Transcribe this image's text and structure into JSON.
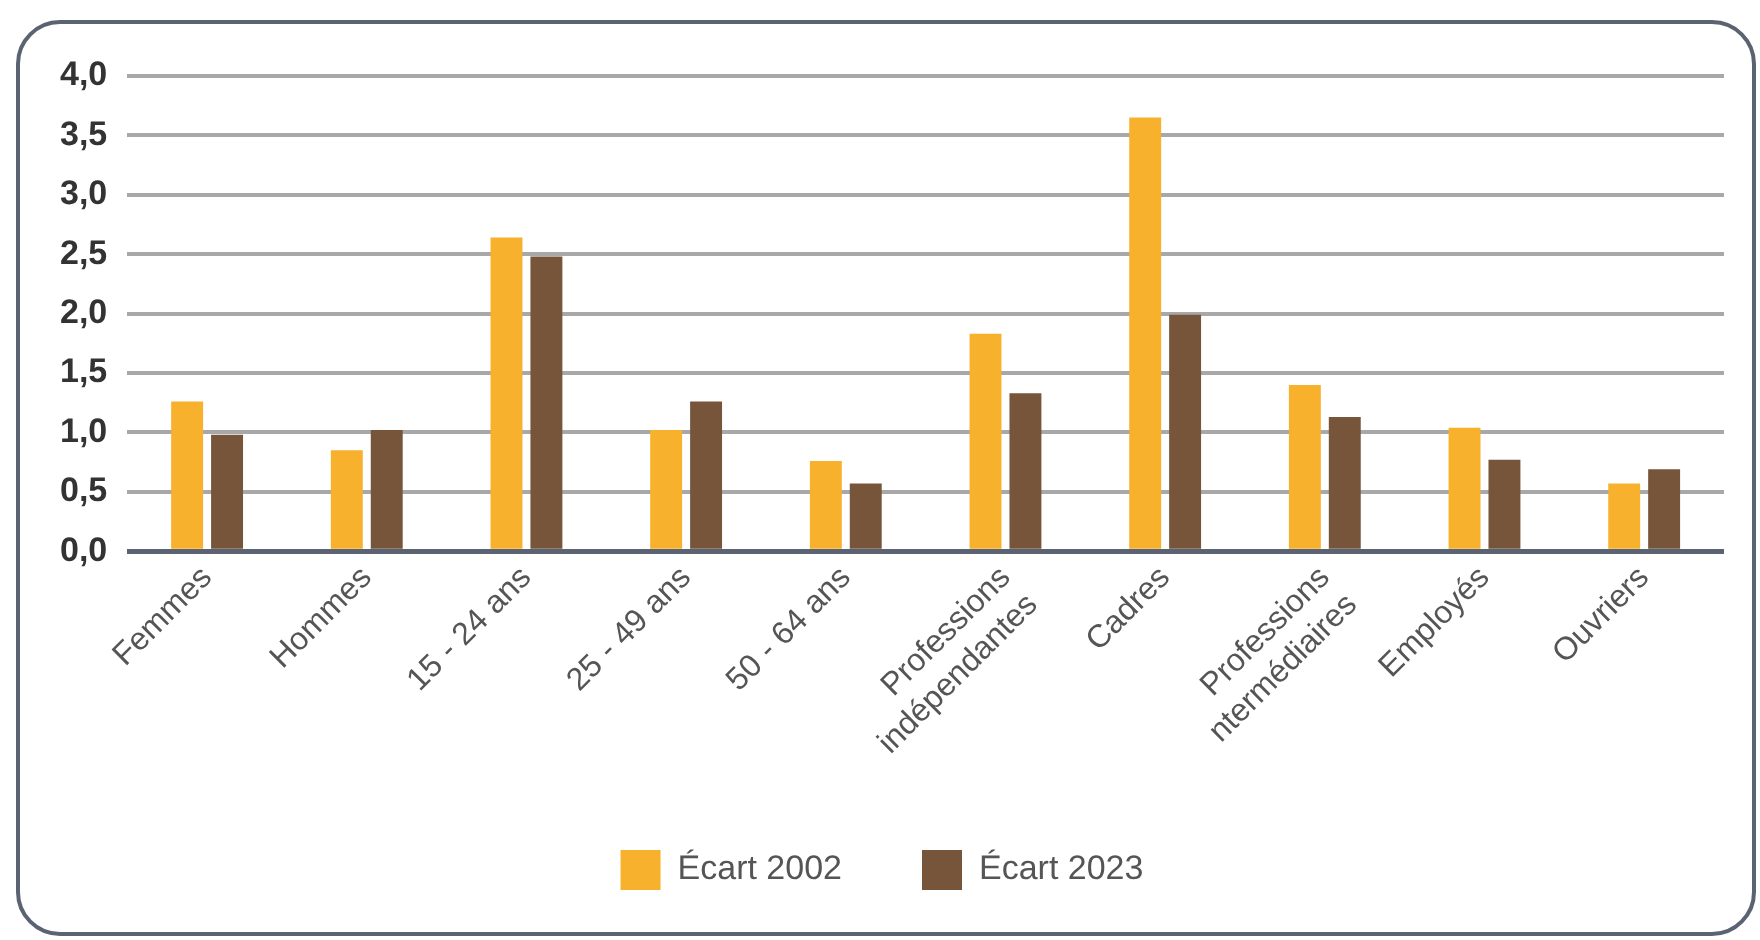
{
  "chart_data": {
    "type": "bar",
    "categories": [
      "Femmes",
      "Hommes",
      "15 - 24 ans",
      "25 - 49 ans",
      "50 - 64 ans",
      "Professions\nindépendantes",
      "Cadres",
      "Professions\nntermédiaires",
      "Employés",
      "Ouvriers"
    ],
    "series": [
      {
        "name": "Écart 2002",
        "color": "#f8b12c",
        "values": [
          1.26,
          0.85,
          2.64,
          1.02,
          0.76,
          1.83,
          3.65,
          1.4,
          1.04,
          0.57
        ]
      },
      {
        "name": "Écart 2023",
        "color": "#77553a",
        "values": [
          0.98,
          1.02,
          2.48,
          1.26,
          0.57,
          1.33,
          1.99,
          1.13,
          0.77,
          0.69
        ]
      }
    ],
    "ylim": [
      0,
      4
    ],
    "yticks": [
      {
        "value": 0,
        "label": "0,0"
      },
      {
        "value": 0.5,
        "label": "0,5"
      },
      {
        "value": 1,
        "label": "1,0"
      },
      {
        "value": 1.5,
        "label": "1,5"
      },
      {
        "value": 2,
        "label": "2,0"
      },
      {
        "value": 2.5,
        "label": "2,5"
      },
      {
        "value": 3,
        "label": "3,0"
      },
      {
        "value": 3.5,
        "label": "3,5"
      },
      {
        "value": 4,
        "label": "4,0"
      }
    ],
    "grid": "y",
    "legend": "bottom"
  }
}
